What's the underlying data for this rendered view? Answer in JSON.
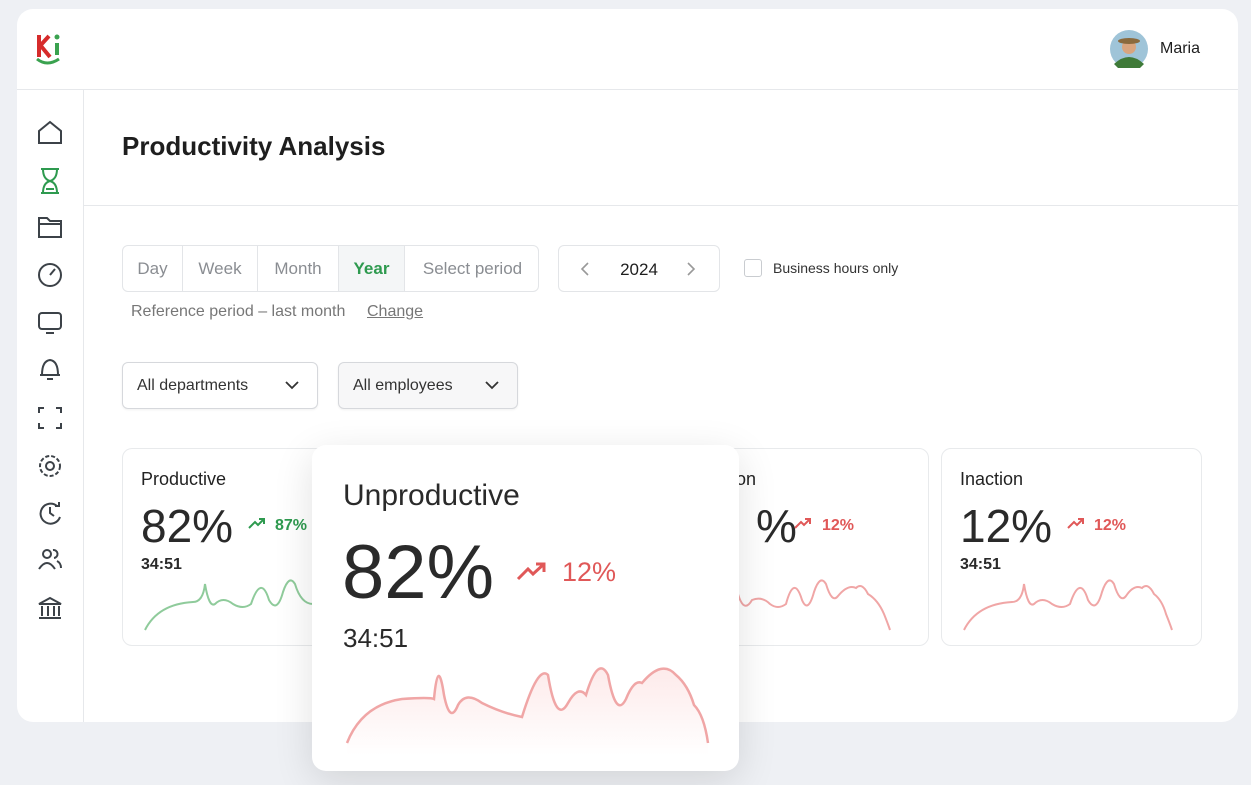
{
  "header": {
    "user": "Maria"
  },
  "page": {
    "title": "Productivity Analysis"
  },
  "filters": {
    "tabs": [
      "Day",
      "Week",
      "Month",
      "Year",
      "Select period"
    ],
    "active_tab": 3,
    "year": "2024",
    "business_hours": "Business hours only",
    "reference": "Reference period – last month",
    "change": "Change",
    "departments": "All departments",
    "employees": "All employees"
  },
  "cards": [
    {
      "title": "Productive",
      "value": "82%",
      "trend": "87%",
      "time": "34:51"
    },
    {
      "title": "on",
      "value": "%",
      "trend": "12%"
    },
    {
      "title": "Inaction",
      "value": "12%",
      "trend": "12%",
      "time": "34:51"
    }
  ],
  "popup": {
    "title": "Unproductive",
    "value": "82%",
    "trend": "12%",
    "time": "34:51"
  }
}
